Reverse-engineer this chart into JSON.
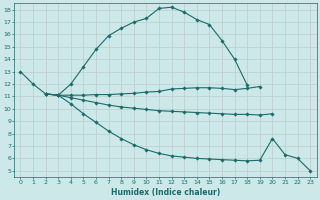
{
  "xlabel": "Humidex (Indice chaleur)",
  "ylabel": "",
  "bg_color": "#cce8e8",
  "grid_color": "#bbcccc",
  "line_color": "#1a6b6b",
  "xlim": [
    -0.5,
    23.5
  ],
  "ylim": [
    4.5,
    18.5
  ],
  "yticks": [
    5,
    6,
    7,
    8,
    9,
    10,
    11,
    12,
    13,
    14,
    15,
    16,
    17,
    18
  ],
  "xticks": [
    0,
    1,
    2,
    3,
    4,
    5,
    6,
    7,
    8,
    9,
    10,
    11,
    12,
    13,
    14,
    15,
    16,
    17,
    18,
    19,
    20,
    21,
    22,
    23
  ],
  "lines": [
    {
      "x": [
        0,
        1,
        2,
        3,
        4,
        5,
        6,
        7,
        8,
        9,
        10,
        11,
        12,
        13,
        14,
        15,
        16,
        17,
        18
      ],
      "y": [
        13,
        12,
        11.2,
        11.1,
        12,
        13.4,
        14.8,
        15.9,
        16.5,
        17.0,
        17.3,
        18.1,
        18.2,
        17.8,
        17.2,
        16.8,
        15.5,
        14.0,
        11.9
      ]
    },
    {
      "x": [
        2,
        3,
        4,
        5,
        6,
        7,
        8,
        9,
        10,
        11,
        12,
        13,
        14,
        15,
        16,
        17,
        18,
        19
      ],
      "y": [
        11.2,
        11.1,
        11.1,
        11.1,
        11.15,
        11.15,
        11.2,
        11.25,
        11.35,
        11.4,
        11.6,
        11.65,
        11.7,
        11.7,
        11.65,
        11.55,
        11.65,
        11.8
      ]
    },
    {
      "x": [
        2,
        3,
        4,
        5,
        6,
        7,
        8,
        9,
        10,
        11,
        12,
        13,
        14,
        15,
        16,
        17,
        18,
        19,
        20
      ],
      "y": [
        11.2,
        11.1,
        10.9,
        10.7,
        10.5,
        10.3,
        10.15,
        10.05,
        9.95,
        9.85,
        9.8,
        9.75,
        9.7,
        9.65,
        9.6,
        9.55,
        9.55,
        9.5,
        9.6
      ]
    },
    {
      "x": [
        2,
        3,
        4,
        5,
        6,
        7,
        8,
        9,
        10,
        11,
        12,
        13,
        14,
        15,
        16,
        17,
        18,
        19,
        20,
        21,
        22,
        23
      ],
      "y": [
        11.2,
        11.1,
        10.4,
        9.6,
        8.9,
        8.2,
        7.6,
        7.1,
        6.7,
        6.4,
        6.2,
        6.1,
        6.0,
        5.95,
        5.9,
        5.85,
        5.8,
        5.85,
        7.6,
        6.3,
        6.0,
        5.0
      ]
    }
  ]
}
